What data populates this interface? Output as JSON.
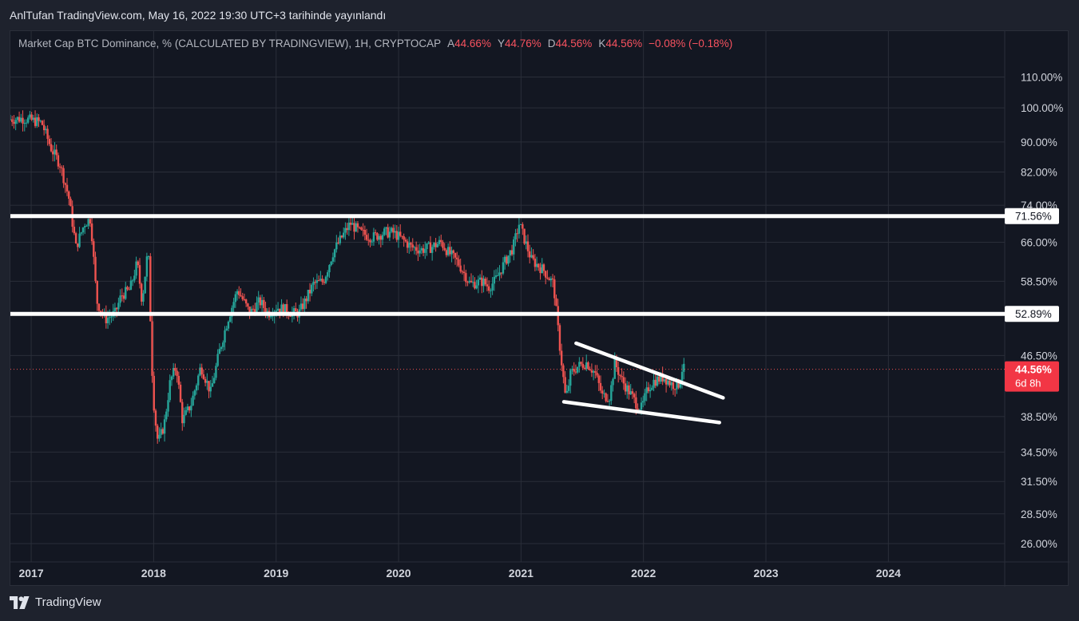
{
  "header": {
    "author_line": "AnlTufan TradingView.com, May 16, 2022 19:30 UTC+3 tarihinde yayınlandı"
  },
  "legend": {
    "symbol": "Market Cap BTC Dominance, % (CALCULATED BY TRADINGVIEW), 1H, CRYPTOCAP",
    "open_label": "A",
    "open_value": "44.66%",
    "high_label": "Y",
    "high_value": "44.76%",
    "low_label": "D",
    "low_value": "44.56%",
    "close_label": "K",
    "close_value": "44.56%",
    "change": "−0.08% (−0.18%)"
  },
  "footer": {
    "brand": "TradingView",
    "logo_icon": "tradingview-logo-icon"
  },
  "colors": {
    "background": "#131722",
    "up": "#26a69a",
    "down": "#ef5350",
    "levels": "#ffffff",
    "grid": "#2a2e39",
    "axis_text": "#d1d4dc",
    "last_price_badge": "#f23645"
  },
  "chart_data": {
    "type": "candlestick",
    "title": "Market Cap BTC Dominance, % (CALCULATED BY TRADINGVIEW)",
    "interval": "1H",
    "exchange": "CRYPTOCAP",
    "y_scale": "log",
    "y_ticks": [
      "110.00%",
      "100.00%",
      "90.00%",
      "82.00%",
      "74.00%",
      "66.00%",
      "58.50%",
      "46.50%",
      "38.50%",
      "34.50%",
      "31.50%",
      "28.50%",
      "26.00%"
    ],
    "y_tick_values": [
      110,
      100,
      90,
      82,
      74,
      66,
      58.5,
      46.5,
      38.5,
      34.5,
      31.5,
      28.5,
      26
    ],
    "x_ticks": [
      "2017",
      "2018",
      "2019",
      "2020",
      "2021",
      "2022",
      "2023",
      "2024"
    ],
    "x_tick_values": [
      2017,
      2018,
      2019,
      2020,
      2021,
      2022,
      2023,
      2024
    ],
    "x_range": [
      2016.83,
      2024.95
    ],
    "series": [
      {
        "points": [
          [
            2016.83,
            96.5
          ],
          [
            2016.95,
            96.8
          ],
          [
            2017.1,
            95.5
          ],
          [
            2017.18,
            88
          ],
          [
            2017.25,
            84
          ],
          [
            2017.32,
            76
          ],
          [
            2017.38,
            65
          ],
          [
            2017.45,
            70
          ],
          [
            2017.5,
            71
          ],
          [
            2017.55,
            55
          ],
          [
            2017.62,
            52
          ],
          [
            2017.7,
            53
          ],
          [
            2017.75,
            56
          ],
          [
            2017.82,
            57
          ],
          [
            2017.88,
            62
          ],
          [
            2017.92,
            55
          ],
          [
            2017.97,
            65
          ],
          [
            2018.0,
            45
          ],
          [
            2018.02,
            39
          ],
          [
            2018.05,
            35.5
          ],
          [
            2018.1,
            37.5
          ],
          [
            2018.15,
            43
          ],
          [
            2018.2,
            45
          ],
          [
            2018.25,
            38
          ],
          [
            2018.32,
            40
          ],
          [
            2018.4,
            45
          ],
          [
            2018.48,
            41.5
          ],
          [
            2018.55,
            47
          ],
          [
            2018.62,
            52
          ],
          [
            2018.7,
            57
          ],
          [
            2018.8,
            53
          ],
          [
            2018.88,
            55
          ],
          [
            2018.95,
            53
          ],
          [
            2019.02,
            54
          ],
          [
            2019.1,
            53.5
          ],
          [
            2019.15,
            53
          ],
          [
            2019.2,
            53
          ],
          [
            2019.25,
            55
          ],
          [
            2019.32,
            58
          ],
          [
            2019.4,
            58.5
          ],
          [
            2019.48,
            64
          ],
          [
            2019.55,
            67
          ],
          [
            2019.62,
            70
          ],
          [
            2019.7,
            68
          ],
          [
            2019.8,
            67
          ],
          [
            2019.9,
            68
          ],
          [
            2019.97,
            68
          ],
          [
            2020.05,
            66.5
          ],
          [
            2020.12,
            65
          ],
          [
            2020.2,
            64.5
          ],
          [
            2020.28,
            65
          ],
          [
            2020.36,
            66
          ],
          [
            2020.42,
            64
          ],
          [
            2020.5,
            62
          ],
          [
            2020.6,
            58
          ],
          [
            2020.7,
            58.5
          ],
          [
            2020.75,
            57.5
          ],
          [
            2020.8,
            58.5
          ],
          [
            2020.88,
            62
          ],
          [
            2020.95,
            65
          ],
          [
            2021.0,
            70
          ],
          [
            2021.05,
            66
          ],
          [
            2021.1,
            62.5
          ],
          [
            2021.2,
            60.5
          ],
          [
            2021.28,
            58
          ],
          [
            2021.33,
            48
          ],
          [
            2021.38,
            40.5
          ],
          [
            2021.42,
            44
          ],
          [
            2021.48,
            45
          ],
          [
            2021.55,
            45.5
          ],
          [
            2021.62,
            44
          ],
          [
            2021.68,
            41
          ],
          [
            2021.74,
            41
          ],
          [
            2021.78,
            45.5
          ],
          [
            2021.84,
            43
          ],
          [
            2021.9,
            41.5
          ],
          [
            2021.96,
            40
          ],
          [
            2022.0,
            39.5
          ],
          [
            2022.05,
            42
          ],
          [
            2022.1,
            43
          ],
          [
            2022.18,
            43.5
          ],
          [
            2022.25,
            42.5
          ],
          [
            2022.3,
            42.5
          ],
          [
            2022.33,
            44.56
          ]
        ]
      }
    ],
    "horizontal_levels": [
      {
        "label": "71.56%",
        "value": 71.56
      },
      {
        "label": "52.89%",
        "value": 52.89
      }
    ],
    "trendlines": [
      {
        "name": "wedge-upper",
        "from": [
          2021.45,
          48.3
        ],
        "to": [
          2022.65,
          40.8
        ]
      },
      {
        "name": "wedge-lower",
        "from": [
          2021.35,
          40.3
        ],
        "to": [
          2022.62,
          37.8
        ]
      }
    ],
    "last_price": {
      "value": 44.56,
      "label": "44.56%",
      "countdown": "6d 8h"
    }
  }
}
